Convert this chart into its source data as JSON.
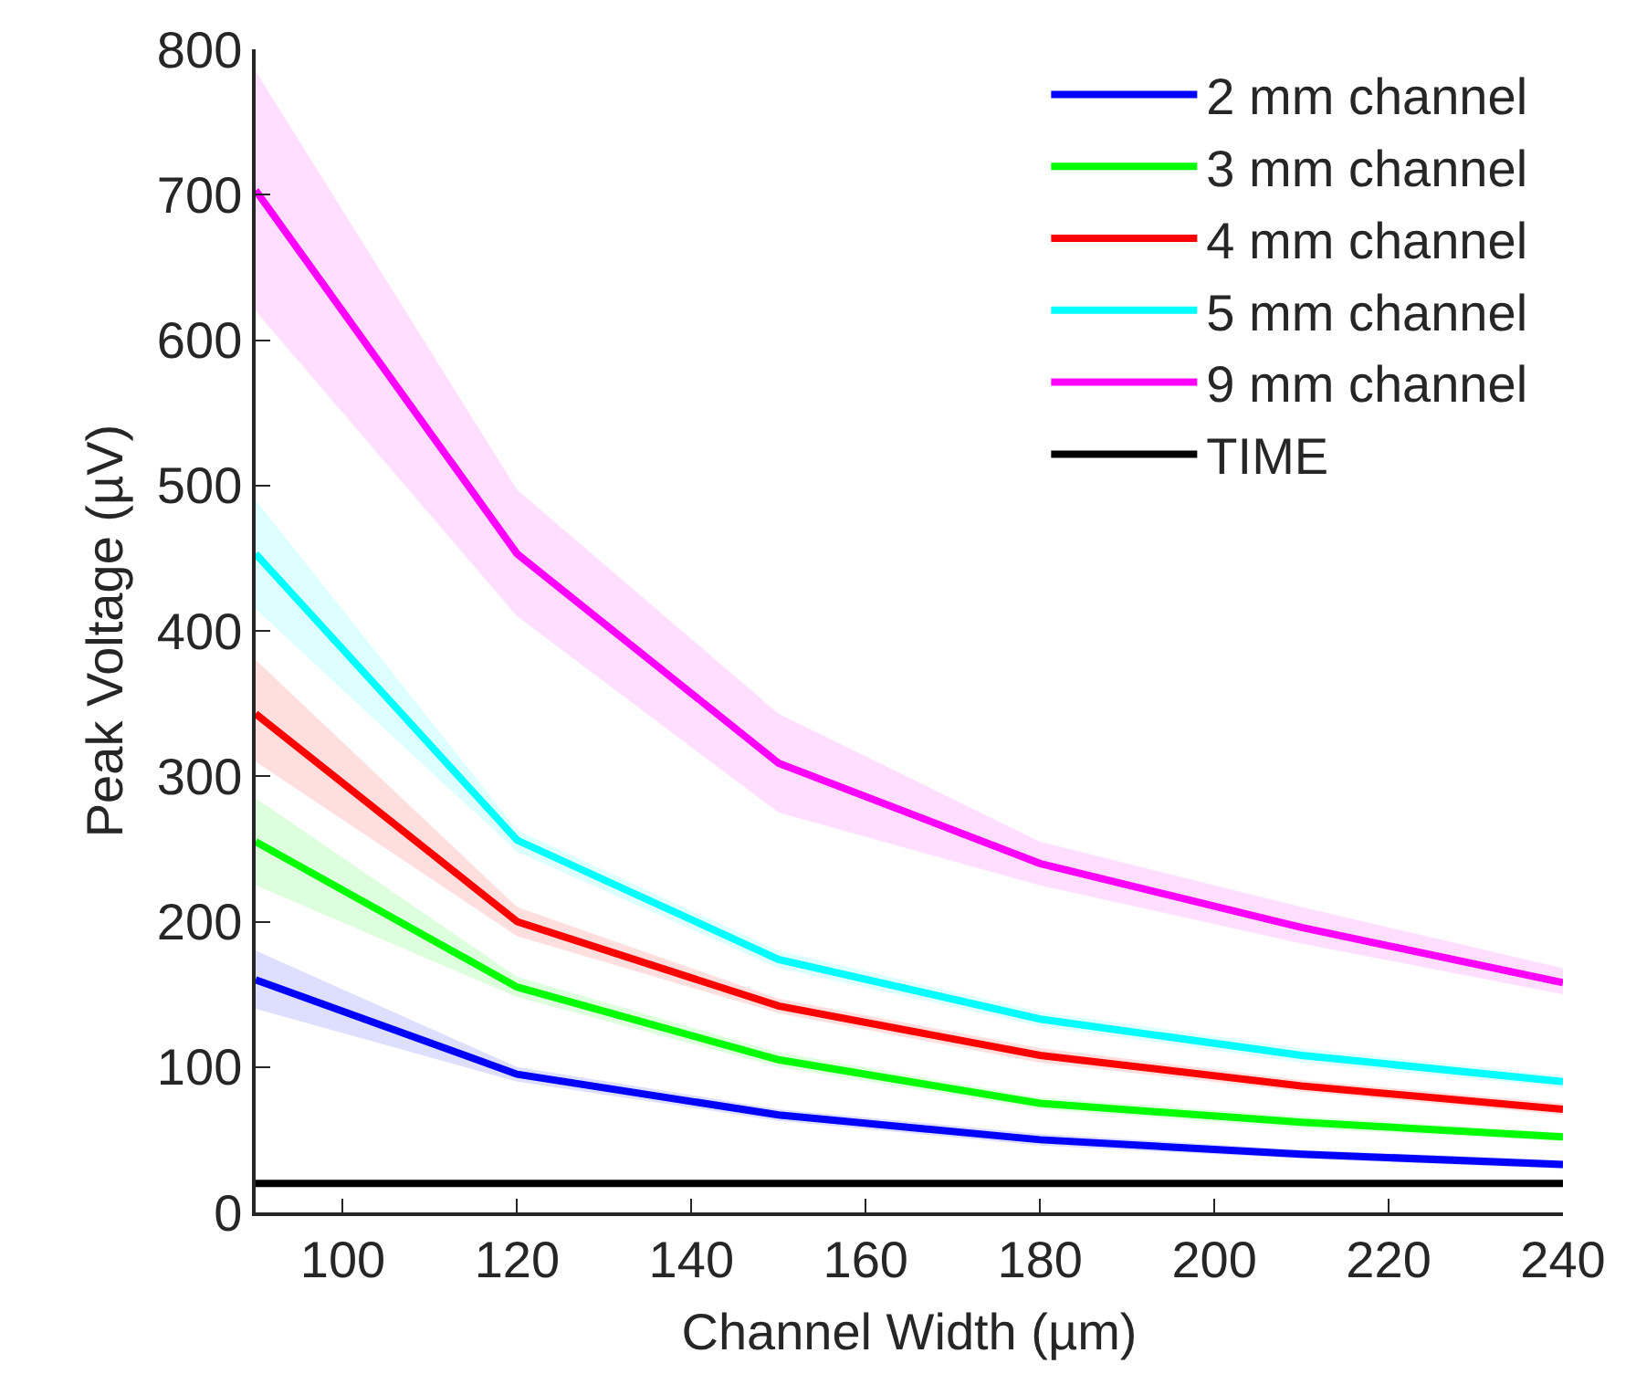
{
  "chart_data": {
    "type": "line",
    "xlabel": "Channel Width (µm)",
    "ylabel": "Peak Voltage (µV)",
    "x": [
      90,
      120,
      150,
      180,
      210,
      240
    ],
    "xlim": [
      90,
      240
    ],
    "xticks": [
      100,
      120,
      140,
      160,
      180,
      200,
      220,
      240
    ],
    "ylim": [
      0,
      800
    ],
    "yticks": [
      0,
      100,
      200,
      300,
      400,
      500,
      600,
      700,
      800
    ],
    "legend": "top right",
    "marker": "none",
    "line_style": "solid",
    "series": [
      {
        "name": "2 mm channel",
        "color": "#0000ff",
        "values": [
          160,
          95,
          67,
          50,
          40,
          33
        ],
        "lower": [
          140,
          90,
          63,
          46,
          37,
          30
        ],
        "upper": [
          180,
          100,
          71,
          54,
          43,
          36
        ]
      },
      {
        "name": "3 mm channel",
        "color": "#00ff00",
        "values": [
          255,
          155,
          105,
          75,
          62,
          52
        ],
        "lower": [
          225,
          148,
          100,
          71,
          58,
          49
        ],
        "upper": [
          285,
          162,
          110,
          79,
          66,
          55
        ]
      },
      {
        "name": "4 mm channel",
        "color": "#ff0000",
        "values": [
          343,
          200,
          142,
          108,
          87,
          71
        ],
        "lower": [
          310,
          190,
          137,
          103,
          83,
          67
        ],
        "upper": [
          380,
          210,
          147,
          113,
          91,
          75
        ]
      },
      {
        "name": "5 mm channel",
        "color": "#00ffff",
        "values": [
          453,
          256,
          174,
          133,
          108,
          90
        ],
        "lower": [
          415,
          248,
          168,
          128,
          103,
          86
        ],
        "upper": [
          490,
          263,
          180,
          138,
          113,
          94
        ]
      },
      {
        "name": "9 mm channel",
        "color": "#ff00ff",
        "values": [
          703,
          453,
          309,
          240,
          196,
          158
        ],
        "lower": [
          620,
          410,
          275,
          225,
          185,
          150
        ],
        "upper": [
          785,
          497,
          343,
          255,
          210,
          168
        ]
      },
      {
        "name": "TIME",
        "color": "#000000",
        "values": [
          20,
          20,
          20,
          20,
          20,
          20
        ]
      }
    ]
  }
}
